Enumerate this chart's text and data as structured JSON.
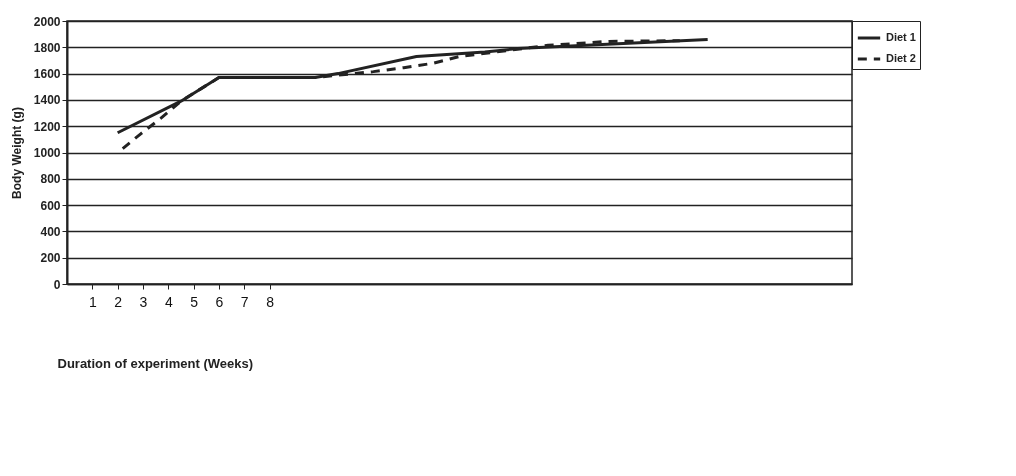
{
  "chart_data": {
    "type": "line",
    "xlabel": "Duration of experiment (Weeks)",
    "ylabel": "Body Weight (g)",
    "xlim": [
      0,
      31
    ],
    "xticks": [
      1,
      2,
      3,
      4,
      5,
      6,
      7,
      8
    ],
    "ylim": [
      0,
      2000
    ],
    "yticks": [
      0,
      200,
      400,
      600,
      800,
      1000,
      1200,
      1400,
      1600,
      1800,
      2000
    ],
    "grid": "y",
    "legend": "right",
    "marker": "none",
    "series": [
      {
        "name": "Diet 1",
        "color": "#222222",
        "line_style": "solid",
        "x": [
          2.0,
          4.5,
          6.0,
          9.8,
          10.7,
          13.8,
          16.5,
          17.8,
          25.3
        ],
        "values": [
          1150,
          1390,
          1570,
          1570,
          1600,
          1730,
          1765,
          1790,
          1860
        ]
      },
      {
        "name": "Diet 2",
        "color": "#222222",
        "line_style": "dashed",
        "x": [
          2.2,
          2.9,
          3.7,
          4.5,
          6.0,
          9.8,
          12.1,
          13.3,
          14.5,
          15.5,
          19.0,
          21.4,
          24.2
        ],
        "values": [
          1030,
          1140,
          1260,
          1390,
          1570,
          1570,
          1615,
          1645,
          1680,
          1730,
          1815,
          1845,
          1850
        ]
      }
    ]
  }
}
